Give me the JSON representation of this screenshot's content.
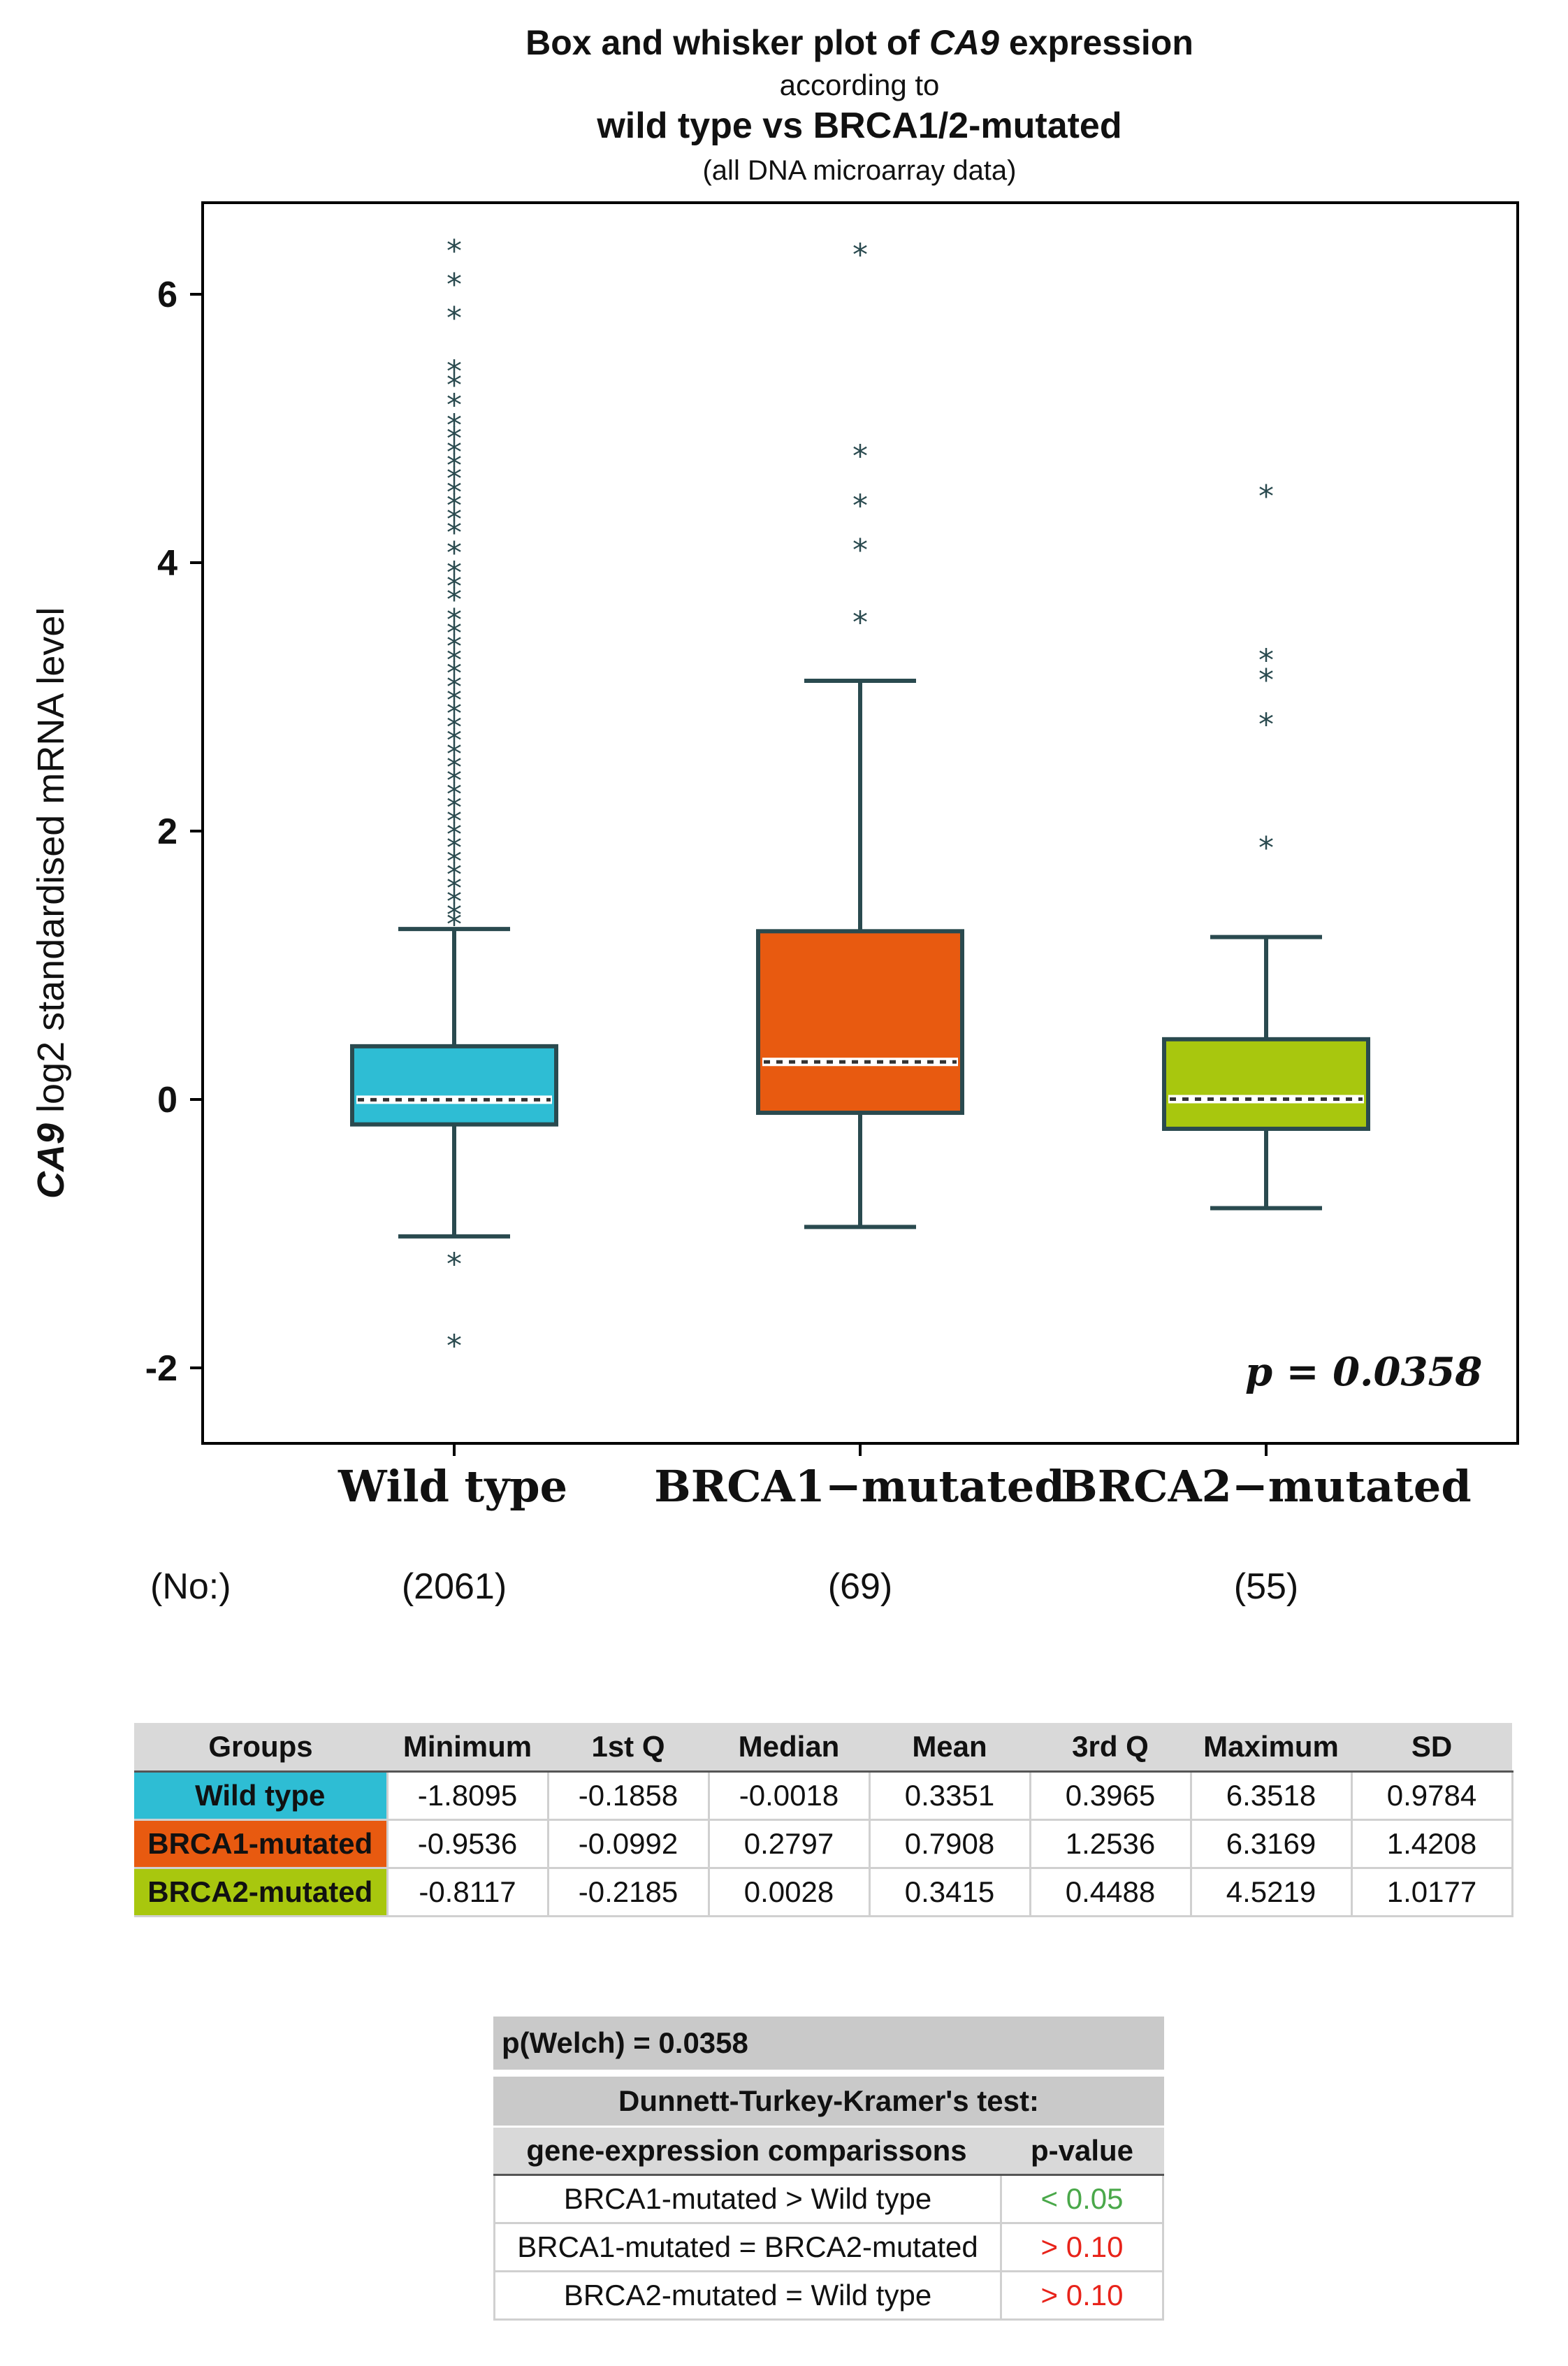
{
  "title": {
    "line1_pre": "Box and whisker plot of ",
    "line1_gene": "CA9",
    "line1_post": " expression",
    "line2": "according to",
    "line3": "wild type vs BRCA1/2-mutated",
    "line4": "(all DNA microarray data)"
  },
  "y_axis": {
    "label_gene": "CA9",
    "label_rest": " log2 standardised mRNA level"
  },
  "p_label": "p = 0.0358",
  "no_label": "(No:)",
  "outlier_symbol": "*",
  "colors": {
    "wild": "#2ebdd4",
    "brca1": "#e85a10",
    "brca2": "#a8c70e",
    "stroke": "#2a4a4f",
    "green": "#4aa84a",
    "red": "#e8231a"
  },
  "chart_data": {
    "type": "box",
    "title": "Box and whisker plot of CA9 expression according to wild type vs BRCA1/2-mutated (all DNA microarray data)",
    "ylabel": "CA9 log2 standardised mRNA level",
    "ylim": [
      -2.6,
      6.7
    ],
    "yticks": [
      -2,
      0,
      2,
      4,
      6
    ],
    "groups": [
      {
        "name": "Wild type",
        "n": "(2061)",
        "color": "#2ebdd4",
        "q1": -0.1858,
        "median": -0.0018,
        "q3": 0.3965,
        "whisker_low": -1.02,
        "whisker_high": 1.27,
        "outliers": [
          6.35,
          6.1,
          5.85,
          5.45,
          5.35,
          5.2,
          5.05,
          4.95,
          4.85,
          4.75,
          4.65,
          4.55,
          4.45,
          4.35,
          4.25,
          4.1,
          3.95,
          3.85,
          3.75,
          3.6,
          3.5,
          3.4,
          3.3,
          3.2,
          3.1,
          3.0,
          2.9,
          2.8,
          2.7,
          2.6,
          2.5,
          2.4,
          2.3,
          2.2,
          2.1,
          2.0,
          1.9,
          1.8,
          1.7,
          1.6,
          1.5,
          1.4,
          1.33,
          -1.2,
          -1.81
        ]
      },
      {
        "name": "BRCA1−mutated",
        "n": "(69)",
        "color": "#e85a10",
        "q1": -0.0992,
        "median": 0.2797,
        "q3": 1.2536,
        "whisker_low": -0.95,
        "whisker_high": 3.12,
        "outliers": [
          6.32,
          4.82,
          4.45,
          4.12,
          3.58
        ]
      },
      {
        "name": "BRCA2−mutated",
        "n": "(55)",
        "color": "#a8c70e",
        "q1": -0.2185,
        "median": 0.0028,
        "q3": 0.4488,
        "whisker_low": -0.81,
        "whisker_high": 1.21,
        "outliers": [
          4.52,
          3.3,
          3.15,
          2.82,
          1.9
        ]
      }
    ]
  },
  "stats_table": {
    "headers": [
      "Groups",
      "Minimum",
      "1st Q",
      "Median",
      "Mean",
      "3rd Q",
      "Maximum",
      "SD"
    ],
    "rows": [
      {
        "group": "Wild type",
        "color": "#2ebdd4",
        "values": [
          "-1.8095",
          "-0.1858",
          "-0.0018",
          "0.3351",
          "0.3965",
          "6.3518",
          "0.9784"
        ]
      },
      {
        "group": "BRCA1-mutated",
        "color": "#e85a10",
        "values": [
          "-0.9536",
          "-0.0992",
          "0.2797",
          "0.7908",
          "1.2536",
          "6.3169",
          "1.4208"
        ]
      },
      {
        "group": "BRCA2-mutated",
        "color": "#a8c70e",
        "values": [
          "-0.8117",
          "-0.2185",
          "0.0028",
          "0.3415",
          "0.4488",
          "4.5219",
          "1.0177"
        ]
      }
    ]
  },
  "welch": {
    "p": "p(Welch) = 0.0358",
    "test": "Dunnett-Turkey-Kramer's test:",
    "col1": "gene-expression comparissons",
    "col2": "p-value",
    "rows": [
      {
        "comparison": "BRCA1-mutated > Wild type",
        "p": "< 0.05",
        "color": "#4aa84a"
      },
      {
        "comparison": "BRCA1-mutated = BRCA2-mutated",
        "p": "> 0.10",
        "color": "#e8231a"
      },
      {
        "comparison": "BRCA2-mutated = Wild type",
        "p": "> 0.10",
        "color": "#e8231a"
      }
    ]
  }
}
